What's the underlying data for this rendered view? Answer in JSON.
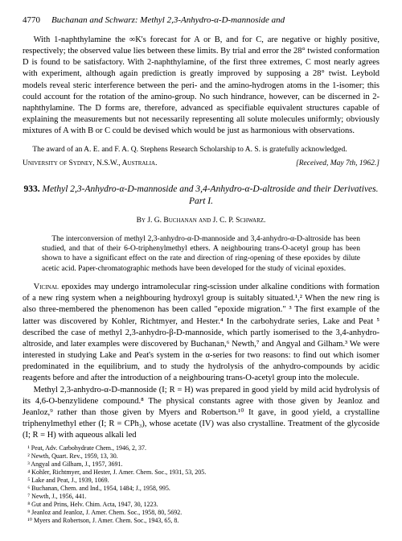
{
  "header": {
    "page_number": "4770",
    "running_title": "Buchanan and Schwarz: Methyl 2,3-Anhydro-α-D-mannoside and"
  },
  "upper_para": "With 1-naphthylamine the ∞K's forecast for A or B, and for C, are negative or highly positive, respectively; the observed value lies between these limits. By trial and error the 28° twisted conformation D is found to be satisfactory. With 2-naphthylamine, of the first three extremes, C most nearly agrees with experiment, although again prediction is greatly improved by supposing a 28° twist. Leybold models reveal steric interference between the peri- and the amino-hydrogen atoms in the 1-isomer; this could account for the rotation of the amino-group. No such hindrance, however, can be discerned in 2-naphthylamine. The D forms are, therefore, advanced as specifiable equivalent structures capable of explaining the measurements but not necessarily representing all solute molecules uniformly; obviously mixtures of A with B or C could be devised which would be just as harmonious with observations.",
  "ack": "The award of an A. E. and F. A. Q. Stephens Research Scholarship to A. S. is gratefully acknowledged.",
  "affil_left": "University of Sydney, N.S.W., Australia.",
  "affil_right": "[Received, May 7th, 1962.]",
  "article": {
    "number": "933.",
    "title": "Methyl 2,3-Anhydro-α-D-mannoside and 3,4-Anhydro-α-D-altroside and their Derivatives. Part I.",
    "authors": "By J. G. Buchanan and J. C. P. Schwarz."
  },
  "abstract": "The interconversion of methyl 2,3-anhydro-α-D-mannoside and 3,4-anhydro-α-D-altroside has been studied, and that of their 6-O-triphenylmethyl ethers. A neighbouring trans-O-acetyl group has been shown to have a significant effect on the rate and direction of ring-opening of these epoxides by dilute acetic acid. Paper-chromatographic methods have been developed for the study of vicinal epoxides.",
  "body1": "Vicinal epoxides may undergo intramolecular ring-scission under alkaline conditions with formation of a new ring system when a neighbouring hydroxyl group is suitably situated.¹,² When the new ring is also three-membered the phenomenon has been called \"epoxide migration.\" ³ The first example of the latter was discovered by Kohler, Richtmyer, and Hester.⁴ In the carbohydrate series, Lake and Peat ⁵ described the case of methyl 2,3-anhydro-β-D-mannoside, which partly isomerised to the 3,4-anhydro-altroside, and later examples were discovered by Buchanan,⁶ Newth,⁷ and Angyal and Gilham.³ We were interested in studying Lake and Peat's system in the α-series for two reasons: to find out which isomer predominated in the equilibrium, and to study the hydrolysis of the anhydro-compounds by acidic reagents before and after the introduction of a neighbouring trans-O-acetyl group into the molecule.",
  "body2": "Methyl 2,3-anhydro-α-D-mannoside (I; R = H) was prepared in good yield by mild acid hydrolysis of its 4,6-O-benzylidene compound.⁸ The physical constants agree with those given by Jeanloz and Jeanloz,⁹ rather than those given by Myers and Robertson.¹⁰ It gave, in good yield, a crystalline triphenylmethyl ether (I; R = CPh₃), whose acetate (IV) was also crystalline. Treatment of the glycoside (I; R = H) with aqueous alkali led",
  "refs": [
    "¹ Peat, Adv. Carbohydrate Chem., 1946, 2, 37.",
    "² Newth, Quart. Rev., 1959, 13, 30.",
    "³ Angyal and Gilham, J., 1957, 3691.",
    "⁴ Kohler, Richtmyer, and Hester, J. Amer. Chem. Soc., 1931, 53, 205.",
    "⁵ Lake and Peat, J., 1939, 1069.",
    "⁶ Buchanan, Chem. and Ind., 1954, 1484; J., 1958, 995.",
    "⁷ Newth, J., 1956, 441.",
    "⁸ Gut and Prins, Helv. Chim. Acta, 1947, 30, 1223.",
    "⁹ Jeanloz and Jeanloz, J. Amer. Chem. Soc., 1958, 80, 5692.",
    "¹⁰ Myers and Robertson, J. Amer. Chem. Soc., 1943, 65, 8."
  ]
}
